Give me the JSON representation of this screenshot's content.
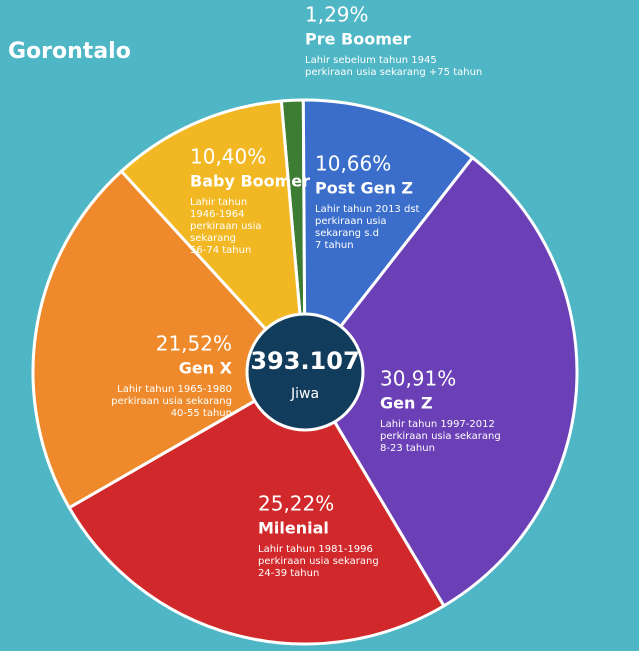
{
  "chart_data": {
    "type": "pie",
    "title": "Gorontalo",
    "categories": [
      "Pre Boomer",
      "Post Gen Z",
      "Gen Z",
      "Milenial",
      "Gen X",
      "Baby Boomer"
    ],
    "values": [
      1.29,
      10.66,
      30.91,
      25.22,
      21.52,
      10.4
    ],
    "value_labels": [
      "1,29%",
      "10,66%",
      "30,91%",
      "25,22%",
      "21,52%",
      "10,40%"
    ],
    "colors": [
      "#3d7d33",
      "#3b6ecb",
      "#6b3fb6",
      "#d1282b",
      "#ee8a2b",
      "#f2b824"
    ],
    "descriptions": [
      [
        "Lahir sebelum tahun 1945",
        "perkiraan usia sekarang +75 tahun"
      ],
      [
        "Lahir tahun 2013 dst",
        "perkiraan usia",
        "sekarang s.d",
        "7 tahun"
      ],
      [
        "Lahir tahun 1997-2012",
        "perkiraan usia sekarang",
        "8-23 tahun"
      ],
      [
        "Lahir tahun 1981-1996",
        "perkiraan usia sekarang",
        "24-39 tahun"
      ],
      [
        "Lahir tahun 1965-1980",
        "perkiraan usia sekarang",
        "40-55 tahun"
      ],
      [
        "Lahir tahun",
        "1946-1964",
        "perkiraan usia",
        "sekarang",
        "56-74 tahun"
      ]
    ],
    "center_value": "393.107",
    "center_label": "Jiwa"
  }
}
